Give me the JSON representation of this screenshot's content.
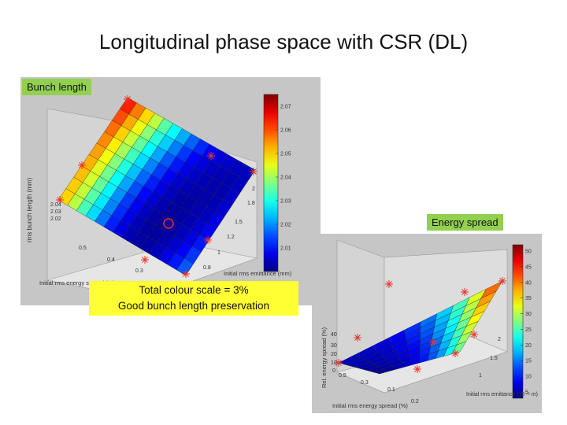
{
  "slide": {
    "title": "Longitudinal phase space with CSR (DL)"
  },
  "labels": {
    "bunch": "Bunch length",
    "energy": "Energy spread"
  },
  "note": {
    "line1": "Total colour scale = 3%",
    "line2": "Good bunch length preservation"
  },
  "chart_data": [
    {
      "type": "surface",
      "title": "",
      "xlabel": "Initial rms energy spread (%)",
      "ylabel": "Initial rms emittance (mm)",
      "zlabel": "rms bunch length (mm)",
      "x_ticks": [
        "0.5",
        "0.4",
        "0.3"
      ],
      "y_ticks": [
        "2",
        "1.8",
        "1.5",
        "1.2",
        "1",
        "0.8"
      ],
      "z_ticks": [
        "2.04",
        "2.03",
        "2.02"
      ],
      "colorbar": {
        "ticks": [
          "2.07",
          "2.06",
          "2.05",
          "2.04",
          "2.03",
          "2.02",
          "2.01"
        ],
        "min": 2.0,
        "max": 2.075
      },
      "values": [
        [
          2.068,
          2.062,
          2.055,
          2.048,
          2.04,
          2.033,
          2.027,
          2.021,
          2.016,
          2.012,
          2.009,
          2.007,
          2.006,
          2.005,
          2.005
        ],
        [
          2.065,
          2.058,
          2.051,
          2.044,
          2.036,
          2.029,
          2.023,
          2.017,
          2.012,
          2.009,
          2.006,
          2.005,
          2.004,
          2.004,
          2.005
        ],
        [
          2.062,
          2.055,
          2.048,
          2.04,
          2.033,
          2.026,
          2.02,
          2.014,
          2.01,
          2.007,
          2.005,
          2.004,
          2.003,
          2.004,
          2.006
        ],
        [
          2.06,
          2.053,
          2.045,
          2.038,
          2.03,
          2.023,
          2.017,
          2.012,
          2.008,
          2.005,
          2.004,
          2.003,
          2.003,
          2.004,
          2.007
        ],
        [
          2.058,
          2.051,
          2.043,
          2.035,
          2.028,
          2.021,
          2.015,
          2.01,
          2.006,
          2.004,
          2.003,
          2.003,
          2.004,
          2.005,
          2.008
        ],
        [
          2.057,
          2.049,
          2.041,
          2.033,
          2.026,
          2.019,
          2.013,
          2.008,
          2.005,
          2.003,
          2.002,
          2.003,
          2.004,
          2.006,
          2.01
        ],
        [
          2.056,
          2.048,
          2.04,
          2.032,
          2.024,
          2.017,
          2.011,
          2.007,
          2.004,
          2.002,
          2.002,
          2.003,
          2.005,
          2.008,
          2.012
        ],
        [
          2.055,
          2.047,
          2.039,
          2.031,
          2.023,
          2.016,
          2.01,
          2.006,
          2.003,
          2.002,
          2.002,
          2.004,
          2.006,
          2.01,
          2.014
        ],
        [
          2.054,
          2.046,
          2.038,
          2.03,
          2.022,
          2.015,
          2.009,
          2.005,
          2.003,
          2.002,
          2.003,
          2.005,
          2.008,
          2.012,
          2.017
        ],
        [
          2.054,
          2.046,
          2.037,
          2.029,
          2.021,
          2.014,
          2.009,
          2.005,
          2.003,
          2.003,
          2.004,
          2.006,
          2.01,
          2.014,
          2.02
        ]
      ],
      "colormap": "jet"
    },
    {
      "type": "surface",
      "title": "",
      "xlabel": "Initial rms energy spread (%)",
      "ylabel": "Initial rms emittance (10⁻⁶ m)",
      "zlabel": "Rel. energy spread (%)",
      "x_ticks": [
        "0.5",
        "0.3",
        "0.1",
        "0.2"
      ],
      "y_ticks": [
        "2",
        "1.5",
        "1"
      ],
      "z_ticks": [
        "40",
        "30",
        "20",
        "10",
        "0"
      ],
      "colorbar": {
        "ticks": [
          "50",
          "45",
          "40",
          "35",
          "30",
          "25",
          "20",
          "15",
          "10",
          "5"
        ],
        "min": 3,
        "max": 52
      },
      "values": [
        [
          6,
          6,
          7,
          8,
          10,
          13,
          17,
          22,
          29,
          37,
          47
        ],
        [
          6,
          6,
          7,
          8,
          10,
          12,
          16,
          21,
          27,
          35,
          44
        ],
        [
          5,
          6,
          6,
          7,
          9,
          12,
          15,
          20,
          26,
          33,
          41
        ],
        [
          5,
          5,
          6,
          7,
          9,
          11,
          14,
          19,
          24,
          31,
          39
        ],
        [
          5,
          5,
          6,
          7,
          8,
          10,
          13,
          17,
          22,
          29,
          36
        ],
        [
          4,
          5,
          5,
          6,
          8,
          10,
          12,
          16,
          21,
          27,
          33
        ],
        [
          4,
          4,
          5,
          6,
          7,
          9,
          12,
          15,
          19,
          25,
          31
        ],
        [
          4,
          4,
          5,
          6,
          7,
          9,
          11,
          14,
          18,
          23,
          28
        ]
      ],
      "colormap": "jet"
    }
  ]
}
